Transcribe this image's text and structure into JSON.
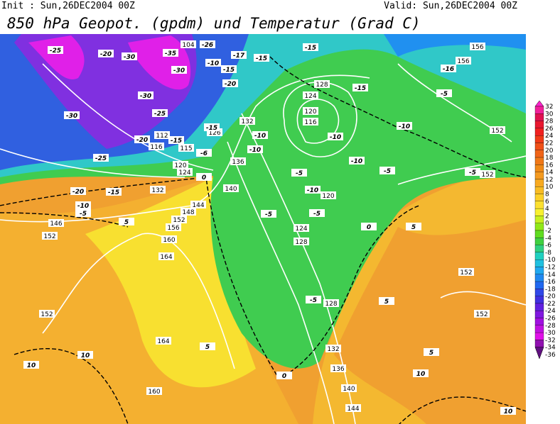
{
  "header": {
    "init": "Init : Sun,26DEC2004 00Z",
    "valid": "Valid: Sun,26DEC2004 00Z",
    "title": "850 hPa Geopot. (gpdm) und Temperatur (Grad C)"
  },
  "colorbar": {
    "labels": [
      32,
      30,
      28,
      26,
      24,
      22,
      20,
      18,
      16,
      14,
      12,
      10,
      8,
      6,
      4,
      2,
      0,
      -2,
      -4,
      -6,
      -8,
      -10,
      -12,
      -14,
      -16,
      -18,
      -20,
      -22,
      -24,
      -26,
      -28,
      -30,
      -32,
      -34,
      -36
    ],
    "colors": [
      "#ff22cc",
      "#f0209a",
      "#e01050",
      "#e81830",
      "#f02020",
      "#f03a18",
      "#f05018",
      "#f06418",
      "#f07818",
      "#f08a18",
      "#f49a20",
      "#f8aa20",
      "#f8bc24",
      "#fcd028",
      "#fce030",
      "#f8f030",
      "#c8f020",
      "#90e818",
      "#60dc20",
      "#40d040",
      "#30d080",
      "#20d0c0",
      "#20c0e0",
      "#20a8f0",
      "#2088f0",
      "#2068f0",
      "#3048e8",
      "#4030e0",
      "#6020e0",
      "#8018e0",
      "#a010e0",
      "#c010e0",
      "#e010e8",
      "#9010b0",
      "#601080"
    ]
  },
  "geopotential_labels": [
    104,
    156,
    156,
    128,
    124,
    120,
    116,
    112,
    116,
    115,
    120,
    124,
    126,
    132,
    136,
    140,
    132,
    144,
    148,
    152,
    156,
    160,
    164,
    146,
    152,
    120,
    124,
    128,
    152,
    152,
    152,
    152,
    152,
    164,
    160,
    128,
    132,
    136,
    140,
    144
  ],
  "temperature_labels": [
    -25,
    -20,
    -30,
    -35,
    -30,
    -26,
    -17,
    -15,
    -10,
    -15,
    -20,
    -30,
    -25,
    -30,
    -20,
    -15,
    -15,
    -25,
    -10,
    -10,
    -6,
    0,
    -20,
    -15,
    -10,
    -5,
    -15,
    -16,
    -15,
    -5,
    -10,
    -10,
    -10,
    -5,
    -5,
    -5,
    -10,
    -5,
    -5,
    0,
    5,
    -5,
    5,
    5,
    10,
    0,
    5,
    5,
    10,
    10,
    10
  ]
}
